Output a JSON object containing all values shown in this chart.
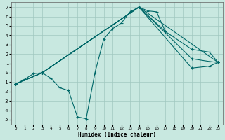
{
  "background_color": "#c8e8e0",
  "grid_color": "#a0c8c0",
  "line_color": "#006868",
  "marker": "+",
  "xlabel": "Humidex (Indice chaleur)",
  "xlim": [
    -0.5,
    23.5
  ],
  "ylim": [
    -5.5,
    7.5
  ],
  "xticks": [
    0,
    1,
    2,
    3,
    4,
    5,
    6,
    7,
    8,
    9,
    10,
    11,
    12,
    13,
    14,
    15,
    16,
    17,
    18,
    19,
    20,
    21,
    22,
    23
  ],
  "yticks": [
    -5,
    -4,
    -3,
    -2,
    -1,
    0,
    1,
    2,
    3,
    4,
    5,
    6,
    7
  ],
  "series_wiggly": {
    "x": [
      0,
      1,
      2,
      3,
      4,
      5,
      6,
      7,
      8,
      9,
      10,
      11,
      12,
      13,
      14,
      15,
      16,
      17
    ],
    "y": [
      -1.2,
      -0.7,
      -0.1,
      0.0,
      -0.6,
      -1.6,
      -1.9,
      -4.7,
      -4.9,
      0.0,
      3.6,
      4.7,
      5.3,
      6.5,
      7.0,
      6.6,
      6.5,
      4.4
    ]
  },
  "series_straight": [
    {
      "x": [
        0,
        3,
        14,
        17,
        20,
        22,
        23
      ],
      "y": [
        -1.2,
        0.0,
        7.0,
        4.4,
        2.5,
        2.2,
        1.1
      ]
    },
    {
      "x": [
        0,
        3,
        14,
        20,
        22,
        23
      ],
      "y": [
        -1.2,
        0.0,
        7.0,
        1.5,
        1.2,
        1.1
      ]
    },
    {
      "x": [
        0,
        3,
        14,
        20,
        22,
        23
      ],
      "y": [
        -1.2,
        0.0,
        7.0,
        0.5,
        0.7,
        1.1
      ]
    },
    {
      "x": [
        0,
        3,
        14,
        23
      ],
      "y": [
        -1.2,
        0.0,
        7.0,
        1.1
      ]
    }
  ]
}
